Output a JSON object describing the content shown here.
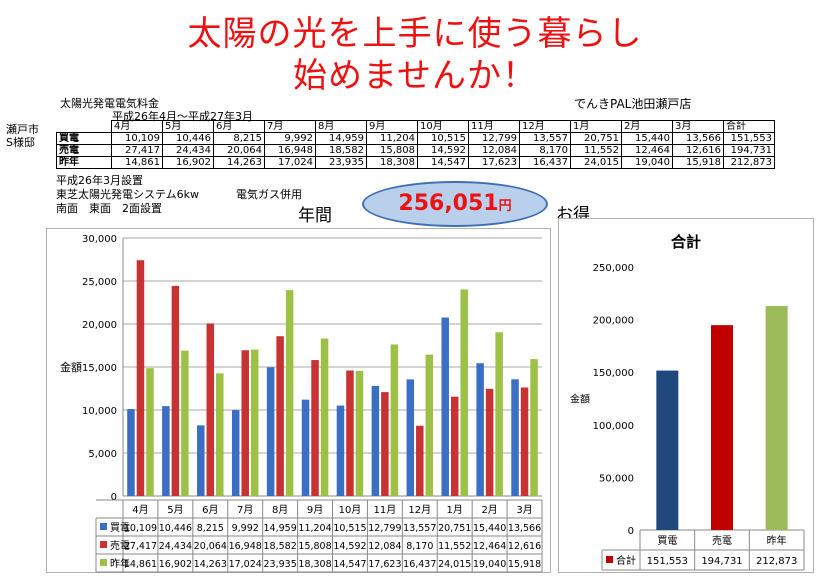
{
  "headline": {
    "line1": "太陽の光を上手に使う暮らし",
    "line2": "始めませんか！"
  },
  "info": {
    "table_title": "太陽光発電電気料金",
    "period": "平成26年4月～平成27年3月",
    "store": "でんきPAL池田瀬戸店",
    "location1": "瀬戸市",
    "location2": "S様邸",
    "note1": "平成26年3月設置",
    "note2": "東芝太陽光発電システム6kw",
    "note3": "電気ガス併用",
    "note4": "南面　東面　2面設置"
  },
  "summary_table": {
    "headers": [
      "4月",
      "5月",
      "6月",
      "7月",
      "8月",
      "9月",
      "10月",
      "11月",
      "12月",
      "1月",
      "2月",
      "3月",
      "合計"
    ],
    "rows": [
      {
        "label": "買電",
        "values": [
          "10,109",
          "10,446",
          "8,215",
          "9,992",
          "14,959",
          "11,204",
          "10,515",
          "12,799",
          "13,557",
          "20,751",
          "15,440",
          "13,566",
          "151,553"
        ]
      },
      {
        "label": "売電",
        "values": [
          "27,417",
          "24,434",
          "20,064",
          "16,948",
          "18,582",
          "15,808",
          "14,592",
          "12,084",
          "8,170",
          "11,552",
          "12,464",
          "12,616",
          "194,731"
        ]
      },
      {
        "label": "昨年",
        "values": [
          "14,861",
          "16,902",
          "14,263",
          "17,024",
          "23,935",
          "18,308",
          "14,547",
          "17,623",
          "16,437",
          "24,015",
          "19,040",
          "15,918",
          "212,873"
        ]
      }
    ]
  },
  "highlight": {
    "amount": "256,051",
    "unit": "円",
    "left_label": "年間",
    "right_label": "お得"
  },
  "colors": {
    "buy": "#3a6fc4",
    "sell": "#c83232",
    "last": "#9dc046",
    "total_buy": "#1f497d",
    "total_sell": "#c00000",
    "total_last": "#9bbb59"
  },
  "chart_data": [
    {
      "type": "bar",
      "ylabel": "金額",
      "ylim": [
        0,
        30000
      ],
      "yticks": [
        "0",
        "5,000",
        "10,000",
        "15,000",
        "20,000",
        "25,000",
        "30,000"
      ],
      "grid": true,
      "legend": "table-below",
      "categories": [
        "4月",
        "5月",
        "6月",
        "7月",
        "8月",
        "9月",
        "10月",
        "11月",
        "12月",
        "1月",
        "2月",
        "3月"
      ],
      "series": [
        {
          "name": "買電",
          "values": [
            10109,
            10446,
            8215,
            9992,
            14959,
            11204,
            10515,
            12799,
            13557,
            20751,
            15440,
            13566
          ],
          "labels": [
            "10,109",
            "10,446",
            "8,215",
            "9,992",
            "14,959",
            "11,204",
            "10,515",
            "12,799",
            "13,557",
            "20,751",
            "15,440",
            "13,566"
          ]
        },
        {
          "name": "売電",
          "values": [
            27417,
            24434,
            20064,
            16948,
            18582,
            15808,
            14592,
            12084,
            8170,
            11552,
            12464,
            12616
          ],
          "labels": [
            "27,417",
            "24,434",
            "20,064",
            "16,948",
            "18,582",
            "15,808",
            "14,592",
            "12,084",
            "8,170",
            "11,552",
            "12,464",
            "12,616"
          ]
        },
        {
          "name": "昨年",
          "values": [
            14861,
            16902,
            14263,
            17024,
            23935,
            18308,
            14547,
            17623,
            16437,
            24015,
            19040,
            15918
          ],
          "labels": [
            "14,861",
            "16,902",
            "14,263",
            "17,024",
            "23,935",
            "18,308",
            "14,547",
            "17,623",
            "16,437",
            "24,015",
            "19,040",
            "15,918"
          ]
        }
      ]
    },
    {
      "type": "bar",
      "title": "合計",
      "ylabel": "金額",
      "ylim": [
        0,
        250000
      ],
      "yticks": [
        "0",
        "50,000",
        "100,000",
        "150,000",
        "200,000",
        "250,000"
      ],
      "grid": false,
      "legend": "table-below",
      "categories": [
        "買電",
        "売電",
        "昨年"
      ],
      "series": [
        {
          "name": "合計",
          "values": [
            151553,
            194731,
            212873
          ],
          "labels": [
            "151,553",
            "194,731",
            "212,873"
          ]
        }
      ]
    }
  ]
}
